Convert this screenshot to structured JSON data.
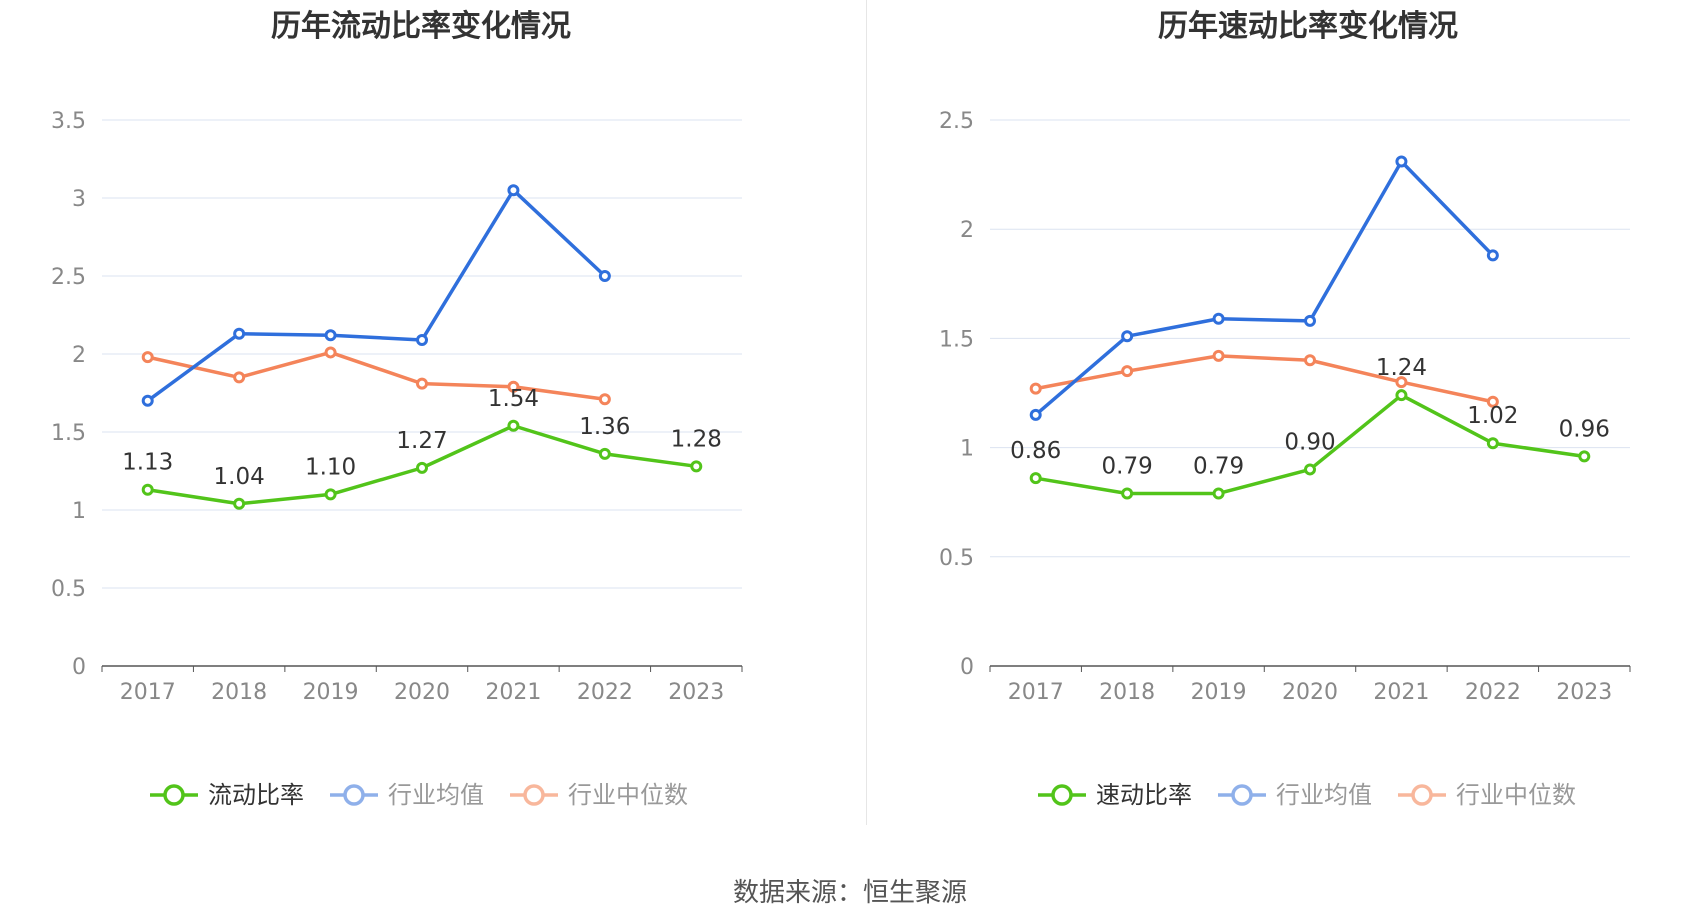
{
  "chart_data": [
    {
      "type": "line",
      "title": "历年流动比率变化情况",
      "categories": [
        "2017",
        "2018",
        "2019",
        "2020",
        "2021",
        "2022",
        "2023"
      ],
      "ylim": [
        0,
        3.5
      ],
      "yticks": [
        "0",
        "0.5",
        "1",
        "1.5",
        "2",
        "2.5",
        "3",
        "3.5"
      ],
      "grid": true,
      "legend_position": "bottom",
      "series": [
        {
          "name": "流动比率",
          "color": "#52c41a",
          "values": [
            1.13,
            1.04,
            1.1,
            1.27,
            1.54,
            1.36,
            1.28
          ],
          "labels": [
            "1.13",
            "1.04",
            "1.10",
            "1.27",
            "1.54",
            "1.36",
            "1.28"
          ]
        },
        {
          "name": "行业均值",
          "color": "#2f6fdc",
          "values": [
            1.7,
            2.13,
            2.12,
            2.09,
            3.05,
            2.5,
            null
          ]
        },
        {
          "name": "行业中位数",
          "color": "#f4845a",
          "values": [
            1.98,
            1.85,
            2.01,
            1.81,
            1.79,
            1.71,
            null
          ]
        }
      ]
    },
    {
      "type": "line",
      "title": "历年速动比率变化情况",
      "categories": [
        "2017",
        "2018",
        "2019",
        "2020",
        "2021",
        "2022",
        "2023"
      ],
      "ylim": [
        0,
        2.5
      ],
      "yticks": [
        "0",
        "0.5",
        "1",
        "1.5",
        "2",
        "2.5"
      ],
      "grid": true,
      "legend_position": "bottom",
      "series": [
        {
          "name": "速动比率",
          "color": "#52c41a",
          "values": [
            0.86,
            0.79,
            0.79,
            0.9,
            1.24,
            1.02,
            0.96
          ],
          "labels": [
            "0.86",
            "0.79",
            "0.79",
            "0.90",
            "1.24",
            "1.02",
            "0.96"
          ]
        },
        {
          "name": "行业均值",
          "color": "#2f6fdc",
          "values": [
            1.15,
            1.51,
            1.59,
            1.58,
            2.31,
            1.88,
            null
          ]
        },
        {
          "name": "行业中位数",
          "color": "#f4845a",
          "values": [
            1.27,
            1.35,
            1.42,
            1.4,
            1.3,
            1.21,
            null
          ]
        }
      ]
    }
  ],
  "footer": {
    "source": "数据来源：恒生聚源"
  }
}
